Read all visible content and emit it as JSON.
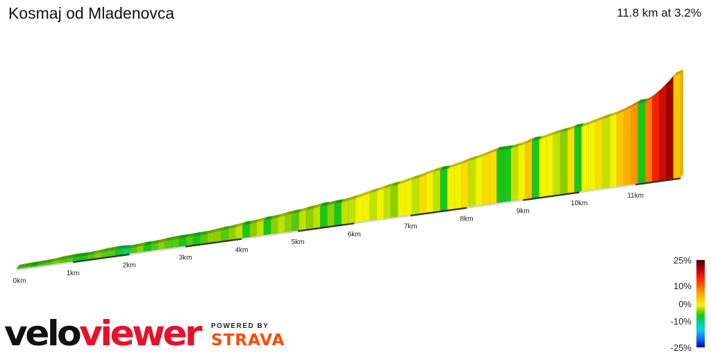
{
  "header": {
    "title": "Kosmaj od Mladenovca",
    "summary": "11.8 km at 3.2%"
  },
  "chart_data": {
    "type": "area",
    "title": "Kosmaj od Mladenovca",
    "subtitle": "11.8 km at 3.2%",
    "x_unit": "km",
    "xlim": [
      0,
      11.8
    ],
    "ticks": [
      {
        "km": 0,
        "label": "0km"
      },
      {
        "km": 1,
        "label": "1km"
      },
      {
        "km": 2,
        "label": "2km"
      },
      {
        "km": 3,
        "label": "3km"
      },
      {
        "km": 4,
        "label": "4km"
      },
      {
        "km": 5,
        "label": "5km"
      },
      {
        "km": 6,
        "label": "6km"
      },
      {
        "km": 7,
        "label": "7km"
      },
      {
        "km": 8,
        "label": "8km"
      },
      {
        "km": 9,
        "label": "9km"
      },
      {
        "km": 10,
        "label": "10km"
      },
      {
        "km": 11,
        "label": "11km"
      }
    ],
    "segments_gradient_pct": [
      1,
      1,
      0,
      1,
      1,
      2,
      1,
      1,
      0,
      0,
      1,
      2,
      1,
      1,
      0,
      -2,
      1,
      2,
      0,
      1,
      2,
      1,
      1,
      0,
      1,
      0,
      1,
      2,
      2,
      1,
      2,
      3,
      0,
      2,
      3,
      0,
      2,
      3,
      2,
      1,
      3,
      2,
      3,
      0,
      2,
      0,
      3,
      3,
      4,
      4,
      3,
      4,
      3,
      2,
      4,
      4,
      3,
      5,
      4,
      3,
      0,
      4,
      4,
      5,
      3,
      4,
      5,
      5,
      0,
      0,
      3,
      4,
      6,
      0,
      4,
      4,
      3,
      2,
      5,
      0,
      4,
      4,
      5,
      3,
      4,
      6,
      7,
      8,
      0,
      9,
      13,
      16,
      19,
      6
    ]
  },
  "legend": {
    "labels": [
      "25%",
      "10%",
      "0%",
      "-10%",
      "-25%"
    ],
    "values": [
      25,
      10,
      0,
      -10,
      -25
    ]
  },
  "logo": {
    "part1": "velo",
    "part2": "viewer"
  },
  "powered": {
    "line1": "POWERED BY",
    "line2": "STRAVA"
  },
  "colors": {
    "strava_orange": "#fc4c02",
    "logo_red": "#e8102a",
    "logo_black": "#111111",
    "base_face": "#dcdcdc",
    "km_stripe": "#333333"
  }
}
